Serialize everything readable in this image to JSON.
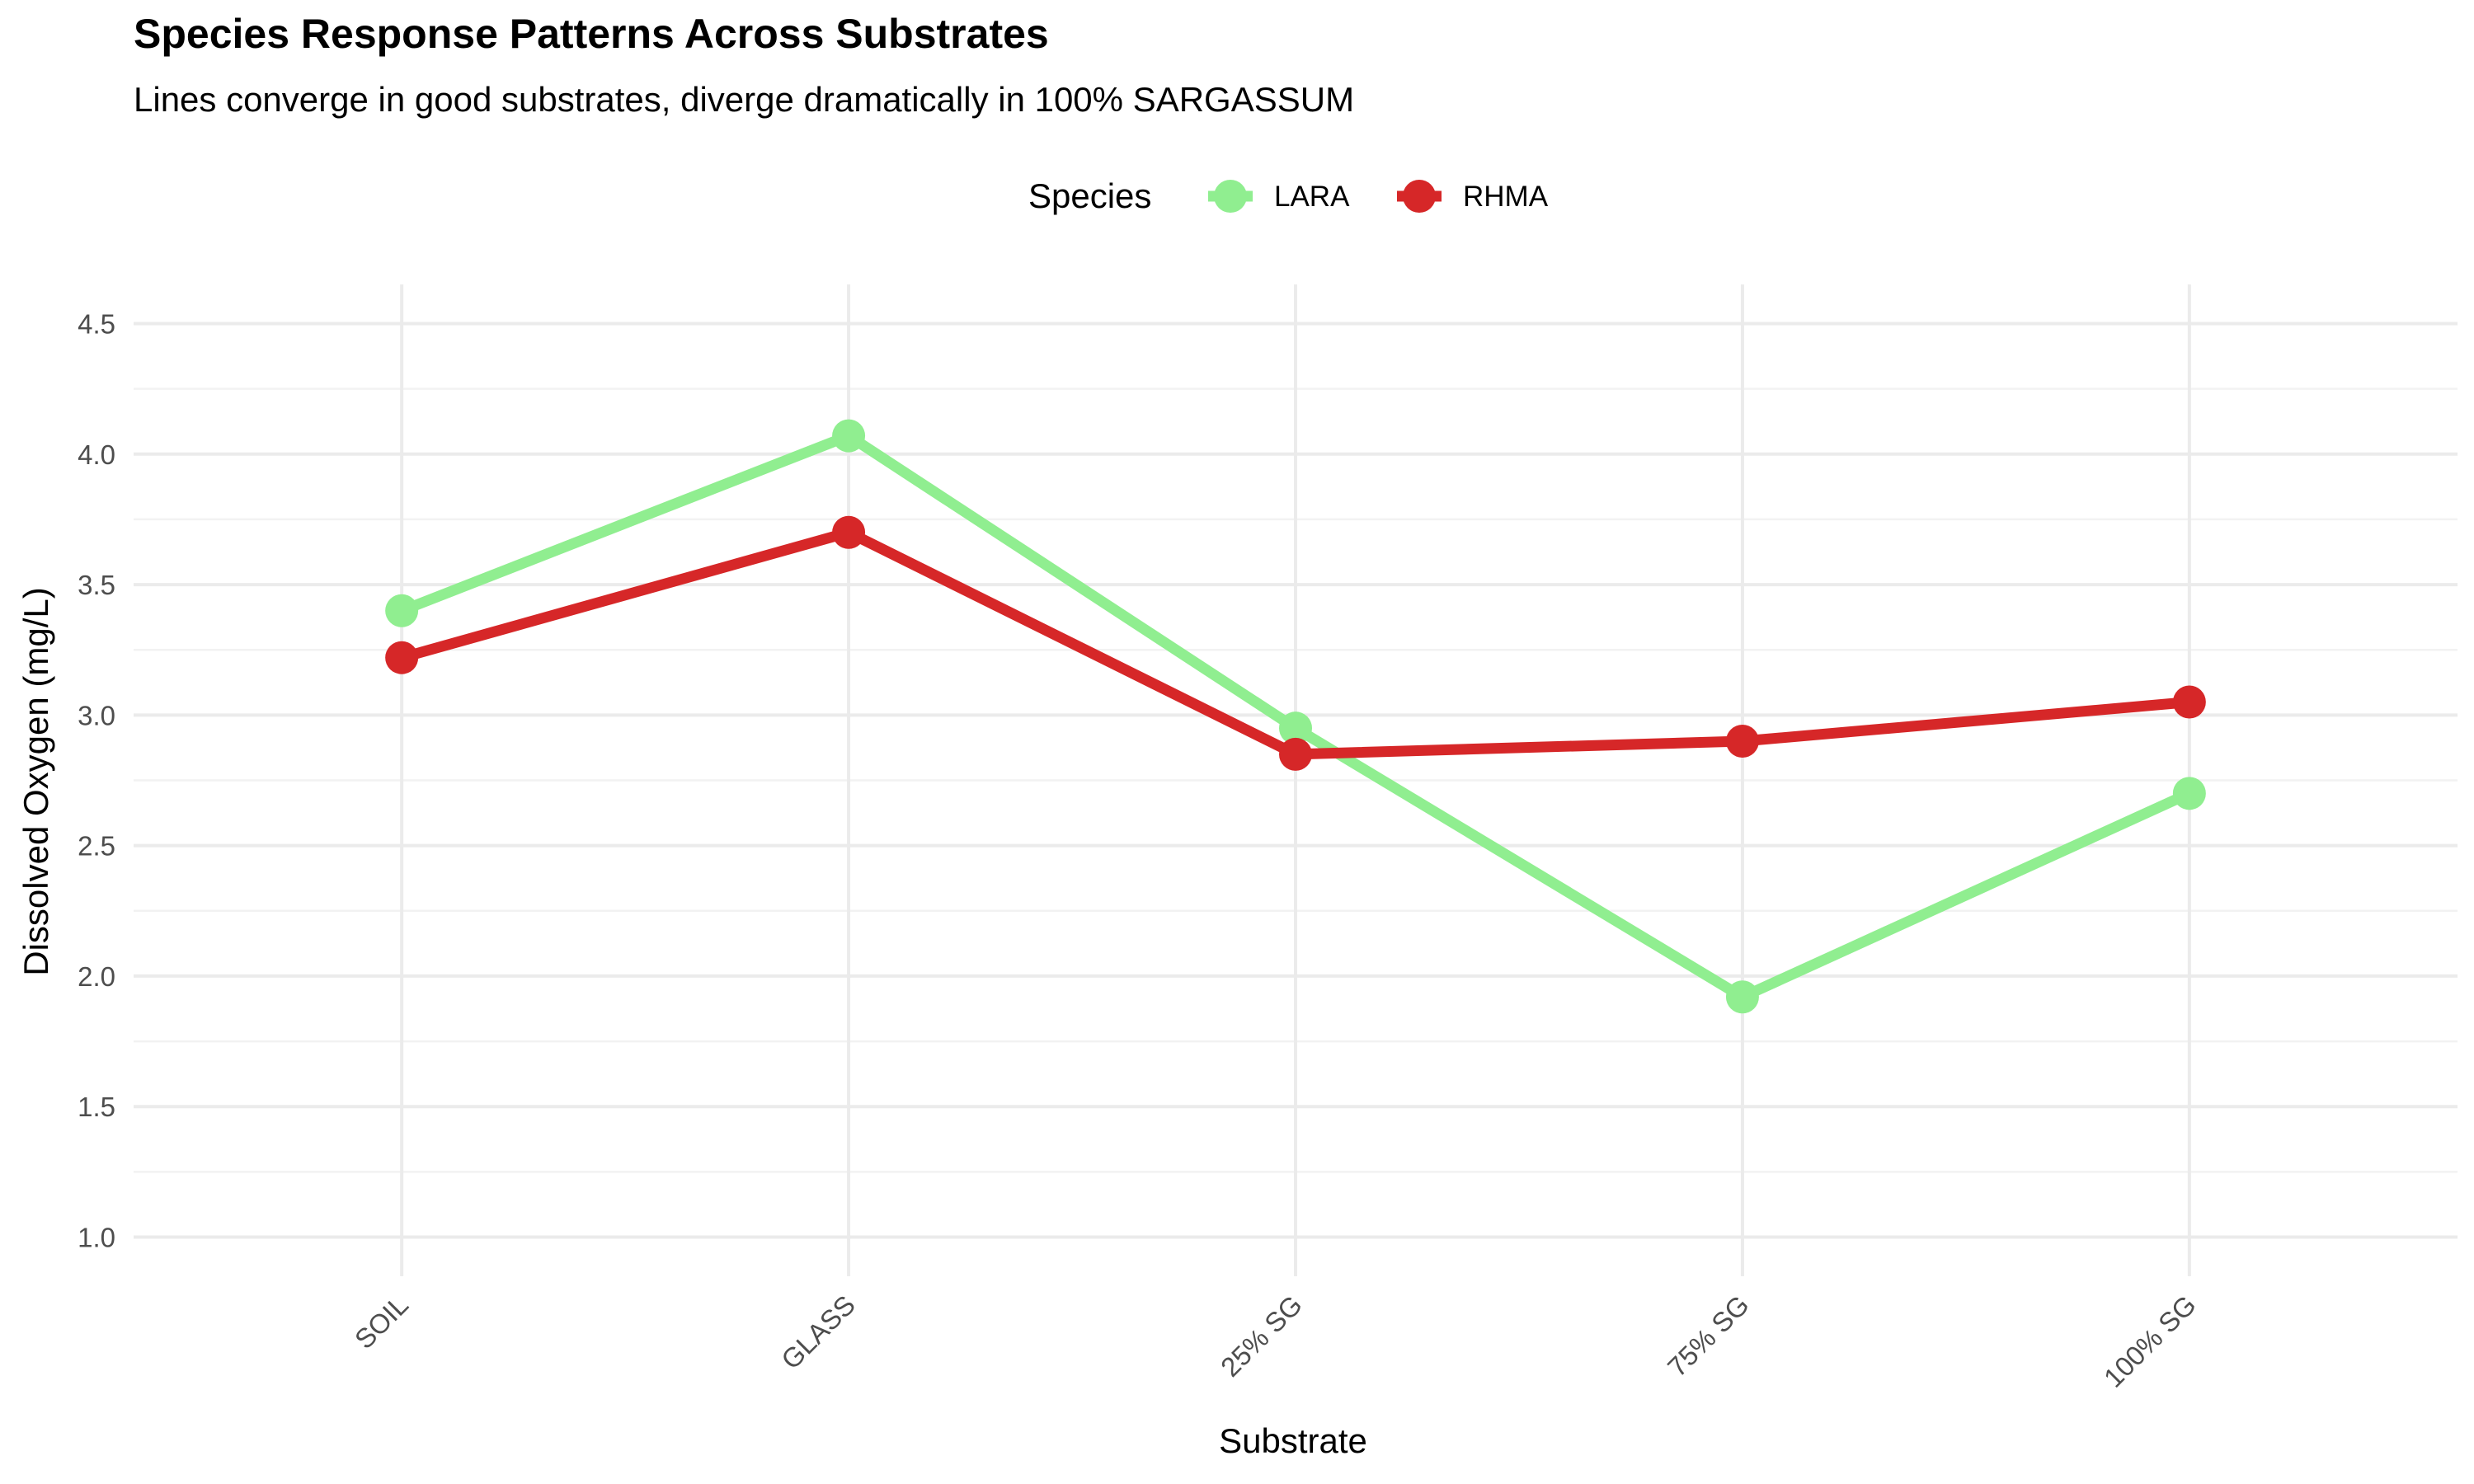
{
  "chart_data": {
    "type": "line",
    "title": "Species Response Patterns Across Substrates",
    "subtitle": "Lines converge in good substrates, diverge dramatically in 100% SARGASSUM",
    "xlabel": "Substrate",
    "ylabel": "Dissolved Oxygen (mg/L)",
    "categories": [
      "SOIL",
      "GLASS",
      "25% SG",
      "75% SG",
      "100% SG"
    ],
    "ylim": [
      0.85,
      4.65
    ],
    "yticks": [
      "1.0",
      "1.5",
      "2.0",
      "2.5",
      "3.0",
      "3.5",
      "4.0",
      "4.5"
    ],
    "grid": true,
    "legend": {
      "title": "Species",
      "position": "top"
    },
    "series": [
      {
        "name": "LARA",
        "color": "#90ee90",
        "values": [
          3.4,
          4.07,
          2.95,
          1.92,
          2.7
        ]
      },
      {
        "name": "RHMA",
        "color": "#d62728",
        "values": [
          3.22,
          3.7,
          2.85,
          2.9,
          3.05
        ]
      }
    ]
  }
}
